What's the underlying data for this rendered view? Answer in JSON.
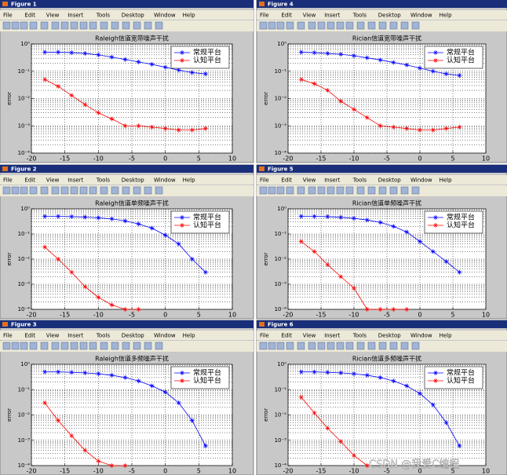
{
  "windows": [
    {
      "title": "Figure 1"
    },
    {
      "title": "Figure 2"
    },
    {
      "title": "Figure 3"
    },
    {
      "title": "Figure 4"
    },
    {
      "title": "Figure 5"
    },
    {
      "title": "Figure 6"
    }
  ],
  "menu": [
    "File",
    "Edit",
    "View",
    "Insert",
    "Tools",
    "Desktop",
    "Window",
    "Help"
  ],
  "watermark": "CSDN @我爱C编程",
  "chart_data": [
    {
      "type": "line",
      "title": "Raleigh信道宽带噪声干扰",
      "ylabel": "error",
      "yscale": "log",
      "grid": true,
      "legend": "upper right",
      "x": [
        -18,
        -16,
        -14,
        -12,
        -10,
        -8,
        -6,
        -4,
        -2,
        0,
        2,
        4,
        6
      ],
      "series": [
        {
          "name": "常规平台",
          "color": "#0000ff",
          "values": [
            0.5,
            0.5,
            0.48,
            0.45,
            0.4,
            0.33,
            0.27,
            0.22,
            0.18,
            0.14,
            0.11,
            0.09,
            0.08
          ]
        },
        {
          "name": "认知平台",
          "color": "#ff0000",
          "values": [
            0.05,
            0.028,
            0.013,
            0.006,
            0.003,
            0.0018,
            0.001,
            0.001,
            0.0009,
            0.0008,
            0.0007,
            0.0007,
            0.0008
          ]
        }
      ],
      "xlim": [
        -20,
        10
      ],
      "xticks": [
        -20,
        -15,
        -10,
        -5,
        0,
        5,
        10
      ],
      "ylim": [
        0.0001,
        1
      ],
      "yticks": [
        {
          "value": 0.0001,
          "label": "10⁻⁴"
        },
        {
          "value": 0.001,
          "label": "10⁻³"
        },
        {
          "value": 0.01,
          "label": "10⁻²"
        },
        {
          "value": 0.1,
          "label": "10⁻¹"
        },
        {
          "value": 1,
          "label": "10⁰"
        }
      ]
    },
    {
      "type": "line",
      "title": "Raleigh信道单频噪声干扰",
      "ylabel": "error",
      "yscale": "log",
      "grid": true,
      "legend": "upper right",
      "x": [
        -18,
        -16,
        -14,
        -12,
        -10,
        -8,
        -6,
        -4,
        -2,
        0,
        2,
        4,
        6
      ],
      "series": [
        {
          "name": "常规平台",
          "color": "#0000ff",
          "values": [
            0.5,
            0.5,
            0.49,
            0.47,
            0.44,
            0.4,
            0.33,
            0.25,
            0.17,
            0.09,
            0.04,
            0.01,
            0.003
          ]
        },
        {
          "name": "认知平台",
          "color": "#ff0000",
          "values": [
            0.03,
            0.01,
            0.003,
            0.0008,
            0.0003,
            0.00015,
            0.0001,
            0.0001,
            null,
            null,
            null,
            null,
            null
          ]
        }
      ],
      "xlim": [
        -20,
        10
      ],
      "xticks": [
        -20,
        -15,
        -10,
        -5,
        0,
        5,
        10
      ],
      "ylim": [
        0.0001,
        1
      ],
      "yticks": [
        {
          "value": 0.0001,
          "label": "10⁻⁴"
        },
        {
          "value": 0.001,
          "label": "10⁻³"
        },
        {
          "value": 0.01,
          "label": "10⁻²"
        },
        {
          "value": 0.1,
          "label": "10⁻¹"
        },
        {
          "value": 1,
          "label": "10⁰"
        }
      ]
    },
    {
      "type": "line",
      "title": "Raleigh信道多频噪声干扰",
      "ylabel": "error",
      "yscale": "log",
      "grid": true,
      "legend": "upper right",
      "x": [
        -18,
        -16,
        -14,
        -12,
        -10,
        -8,
        -6,
        -4,
        -2,
        0,
        2,
        4,
        6
      ],
      "series": [
        {
          "name": "常规平台",
          "color": "#0000ff",
          "values": [
            0.5,
            0.5,
            0.48,
            0.46,
            0.42,
            0.37,
            0.3,
            0.22,
            0.14,
            0.08,
            0.03,
            0.006,
            0.0006
          ]
        },
        {
          "name": "认知平台",
          "color": "#ff0000",
          "values": [
            0.03,
            0.006,
            0.0015,
            0.0004,
            0.00015,
            0.0001,
            0.0001,
            null,
            null,
            null,
            null,
            null,
            null
          ]
        }
      ],
      "xlim": [
        -20,
        10
      ],
      "xticks": [
        -20,
        -15,
        -10,
        -5,
        0,
        5,
        10
      ],
      "ylim": [
        0.0001,
        1
      ],
      "yticks": [
        {
          "value": 0.0001,
          "label": "10⁻⁴"
        },
        {
          "value": 0.001,
          "label": "10⁻³"
        },
        {
          "value": 0.01,
          "label": "10⁻²"
        },
        {
          "value": 0.1,
          "label": "10⁻¹"
        },
        {
          "value": 1,
          "label": "10⁰"
        }
      ]
    },
    {
      "type": "line",
      "title": "Rician信道宽带噪声干扰",
      "ylabel": "error",
      "yscale": "log",
      "grid": true,
      "legend": "upper right",
      "x": [
        -18,
        -16,
        -14,
        -12,
        -10,
        -8,
        -6,
        -4,
        -2,
        0,
        2,
        4,
        6
      ],
      "series": [
        {
          "name": "常规平台",
          "color": "#0000ff",
          "values": [
            0.5,
            0.48,
            0.45,
            0.42,
            0.37,
            0.31,
            0.26,
            0.21,
            0.17,
            0.13,
            0.1,
            0.08,
            0.07
          ]
        },
        {
          "name": "认知平台",
          "color": "#ff0000",
          "values": [
            0.05,
            0.035,
            0.02,
            0.008,
            0.004,
            0.002,
            0.001,
            0.0009,
            0.0008,
            0.0007,
            0.0007,
            0.0008,
            0.0009
          ]
        }
      ],
      "xlim": [
        -20,
        10
      ],
      "xticks": [
        -20,
        -15,
        -10,
        -5,
        0,
        5,
        10
      ],
      "ylim": [
        0.0001,
        1
      ],
      "yticks": [
        {
          "value": 0.0001,
          "label": "10⁻⁴"
        },
        {
          "value": 0.001,
          "label": "10⁻³"
        },
        {
          "value": 0.01,
          "label": "10⁻²"
        },
        {
          "value": 0.1,
          "label": "10⁻¹"
        },
        {
          "value": 1,
          "label": "10⁰"
        }
      ]
    },
    {
      "type": "line",
      "title": "Rician信道单频噪声干扰",
      "ylabel": "error",
      "yscale": "log",
      "grid": true,
      "legend": "upper right",
      "x": [
        -18,
        -16,
        -14,
        -12,
        -10,
        -8,
        -6,
        -4,
        -2,
        0,
        2,
        4,
        6
      ],
      "series": [
        {
          "name": "常规平台",
          "color": "#0000ff",
          "values": [
            0.5,
            0.5,
            0.49,
            0.46,
            0.42,
            0.36,
            0.29,
            0.2,
            0.12,
            0.05,
            0.02,
            0.008,
            0.003
          ]
        },
        {
          "name": "认知平台",
          "color": "#ff0000",
          "values": [
            0.05,
            0.02,
            0.006,
            0.002,
            0.0007,
            0.0001,
            0.0001,
            0.0001,
            0.0001,
            null,
            null,
            null,
            null
          ]
        }
      ],
      "xlim": [
        -20,
        10
      ],
      "xticks": [
        -20,
        -15,
        -10,
        -5,
        0,
        5,
        10
      ],
      "ylim": [
        0.0001,
        1
      ],
      "yticks": [
        {
          "value": 0.0001,
          "label": "10⁻⁴"
        },
        {
          "value": 0.001,
          "label": "10⁻³"
        },
        {
          "value": 0.01,
          "label": "10⁻²"
        },
        {
          "value": 0.1,
          "label": "10⁻¹"
        },
        {
          "value": 1,
          "label": "10⁰"
        }
      ]
    },
    {
      "type": "line",
      "title": "Rician信道多频噪声干扰",
      "ylabel": "error",
      "yscale": "log",
      "grid": true,
      "legend": "upper right",
      "x": [
        -18,
        -16,
        -14,
        -12,
        -10,
        -8,
        -6,
        -4,
        -2,
        0,
        2,
        4,
        6
      ],
      "series": [
        {
          "name": "常规平台",
          "color": "#0000ff",
          "values": [
            0.5,
            0.5,
            0.48,
            0.46,
            0.42,
            0.37,
            0.3,
            0.22,
            0.14,
            0.07,
            0.025,
            0.005,
            0.0006
          ]
        },
        {
          "name": "认知平台",
          "color": "#ff0000",
          "values": [
            0.05,
            0.012,
            0.003,
            0.0009,
            0.00025,
            0.0001,
            null,
            null,
            null,
            null,
            null,
            null,
            null
          ]
        }
      ],
      "xlim": [
        -20,
        10
      ],
      "xticks": [
        -20,
        -15,
        -10,
        -5,
        0,
        5,
        10
      ],
      "ylim": [
        0.0001,
        1
      ],
      "yticks": [
        {
          "value": 0.0001,
          "label": "10⁻⁴"
        },
        {
          "value": 0.001,
          "label": "10⁻³"
        },
        {
          "value": 0.01,
          "label": "10⁻²"
        },
        {
          "value": 0.1,
          "label": "10⁻¹"
        },
        {
          "value": 1,
          "label": "10⁰"
        }
      ]
    }
  ]
}
